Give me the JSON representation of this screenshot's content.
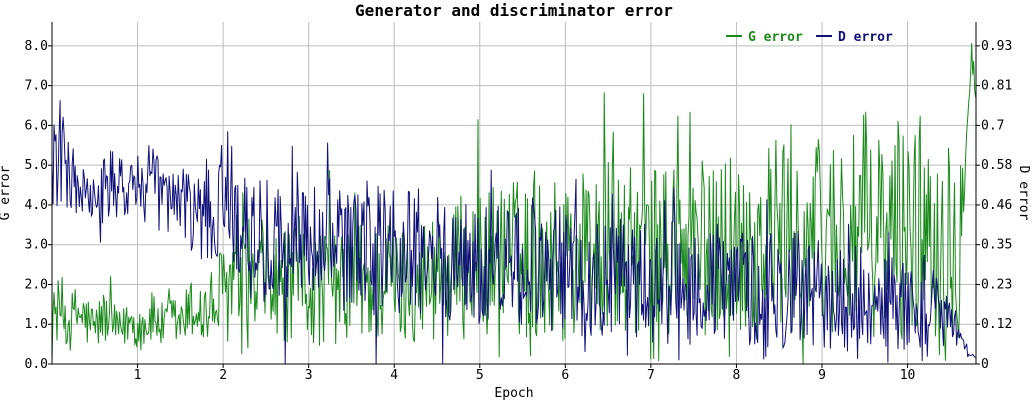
{
  "chart_data": {
    "type": "line",
    "title": "Generator and discriminator error",
    "xlabel": "Epoch",
    "ylabel_left": "G error",
    "ylabel_right": "D error",
    "xlim": [
      0,
      10.8
    ],
    "ylim_left": [
      0,
      8.6
    ],
    "ylim_right": [
      0,
      1.0
    ],
    "x_ticks": [
      1,
      2,
      3,
      4,
      5,
      6,
      7,
      8,
      9,
      10
    ],
    "x_tick_labels": [
      "1",
      "2",
      "3",
      "4",
      "5",
      "6",
      "7",
      "8",
      "9",
      "10"
    ],
    "y_left_ticks": [
      0,
      1,
      2,
      3,
      4,
      5,
      6,
      7,
      8
    ],
    "y_left_tick_labels": [
      "0.0",
      "1.0",
      "2.0",
      "3.0",
      "4.0",
      "5.0",
      "6.0",
      "7.0",
      "8.0"
    ],
    "y_right_ticks": [
      0,
      0.1163,
      0.2326,
      0.3488,
      0.4651,
      0.5814,
      0.6977,
      0.814,
      0.9302
    ],
    "y_right_tick_labels": [
      "0",
      "0.12",
      "0.23",
      "0.35",
      "0.46",
      "0.58",
      "0.7",
      "0.81",
      "0.93"
    ],
    "grid": true,
    "legend_position": "top-right",
    "series": [
      {
        "name": "G error",
        "axis": "left",
        "color": "#1a8a1a",
        "x": [
          0.0,
          0.1,
          0.2,
          0.3,
          0.4,
          0.5,
          0.6,
          0.7,
          0.8,
          0.9,
          1.0,
          1.1,
          1.2,
          1.3,
          1.4,
          1.5,
          1.6,
          1.7,
          1.8,
          1.9,
          2.0,
          2.1,
          2.2,
          2.3,
          2.4,
          2.5,
          2.6,
          2.7,
          2.8,
          2.9,
          3.0,
          3.1,
          3.2,
          3.3,
          3.4,
          3.5,
          3.6,
          3.7,
          3.8,
          3.9,
          4.0,
          4.1,
          4.2,
          4.3,
          4.4,
          4.5,
          4.6,
          4.7,
          4.8,
          4.9,
          5.0,
          5.1,
          5.2,
          5.3,
          5.4,
          5.5,
          5.6,
          5.7,
          5.8,
          5.9,
          6.0,
          6.1,
          6.2,
          6.3,
          6.4,
          6.5,
          6.6,
          6.7,
          6.8,
          6.9,
          7.0,
          7.1,
          7.2,
          7.3,
          7.4,
          7.5,
          7.6,
          7.7,
          7.8,
          7.9,
          8.0,
          8.1,
          8.2,
          8.3,
          8.4,
          8.5,
          8.6,
          8.7,
          8.8,
          8.9,
          9.0,
          9.1,
          9.2,
          9.3,
          9.4,
          9.5,
          9.6,
          9.7,
          9.8,
          9.9,
          10.0,
          10.1,
          10.2,
          10.3,
          10.4,
          10.5,
          10.6,
          10.7,
          10.75,
          10.8
        ],
        "values": [
          1.2,
          1.4,
          1.0,
          1.3,
          1.1,
          0.9,
          1.2,
          1.0,
          0.8,
          1.1,
          0.9,
          1.0,
          1.2,
          0.9,
          1.1,
          1.0,
          1.3,
          1.4,
          1.2,
          1.5,
          1.8,
          2.0,
          1.9,
          1.7,
          1.8,
          2.1,
          1.9,
          2.0,
          1.8,
          2.2,
          2.0,
          1.9,
          2.1,
          2.0,
          1.8,
          2.3,
          2.1,
          1.9,
          2.0,
          2.2,
          2.1,
          2.0,
          2.3,
          2.2,
          2.1,
          2.4,
          2.3,
          2.2,
          2.5,
          2.4,
          2.6,
          2.5,
          2.8,
          2.6,
          2.7,
          2.5,
          2.9,
          2.7,
          2.8,
          2.6,
          2.7,
          2.9,
          2.8,
          3.0,
          2.7,
          2.9,
          2.8,
          2.6,
          2.9,
          3.0,
          2.8,
          2.7,
          2.9,
          3.1,
          2.8,
          3.0,
          2.9,
          2.7,
          3.0,
          3.2,
          2.9,
          3.1,
          3.0,
          2.8,
          3.3,
          3.1,
          3.4,
          3.2,
          3.0,
          3.3,
          3.1,
          3.2,
          3.4,
          3.0,
          3.3,
          3.5,
          3.2,
          3.4,
          3.1,
          3.3,
          3.5,
          3.4,
          3.6,
          3.3,
          3.5,
          3.2,
          3.0,
          6.5,
          7.8,
          6.8
        ],
        "amplitude": [
          0.6,
          0.9,
          0.7,
          0.8,
          0.7,
          0.6,
          0.7,
          0.6,
          0.5,
          0.6,
          0.6,
          0.6,
          0.7,
          0.6,
          0.7,
          0.6,
          0.8,
          0.9,
          0.9,
          1.1,
          1.3,
          1.5,
          1.4,
          1.3,
          1.4,
          1.5,
          1.4,
          1.5,
          1.4,
          1.6,
          1.5,
          1.5,
          1.6,
          1.5,
          1.4,
          1.7,
          1.6,
          1.5,
          1.6,
          1.7,
          1.6,
          1.6,
          1.7,
          1.7,
          1.6,
          1.8,
          1.8,
          1.7,
          1.9,
          1.8,
          2.0,
          1.9,
          2.1,
          2.0,
          2.1,
          1.9,
          2.3,
          2.1,
          2.2,
          2.0,
          2.1,
          2.3,
          2.2,
          2.4,
          2.1,
          2.3,
          2.2,
          2.0,
          2.3,
          2.4,
          2.2,
          2.1,
          2.3,
          2.5,
          2.2,
          2.4,
          2.3,
          2.1,
          2.4,
          2.6,
          2.3,
          2.5,
          2.4,
          2.2,
          2.7,
          2.5,
          2.8,
          2.6,
          2.4,
          2.7,
          2.5,
          2.6,
          2.8,
          2.4,
          2.7,
          2.9,
          2.6,
          2.8,
          2.5,
          2.7,
          2.9,
          2.8,
          3.0,
          2.7,
          2.9,
          2.6,
          2.4,
          0.6,
          0.5,
          0.4
        ]
      },
      {
        "name": "D error",
        "axis": "right",
        "color": "#10107a",
        "x": [
          0.0,
          0.1,
          0.2,
          0.3,
          0.4,
          0.5,
          0.6,
          0.7,
          0.8,
          0.9,
          1.0,
          1.1,
          1.2,
          1.3,
          1.4,
          1.5,
          1.6,
          1.7,
          1.8,
          1.9,
          2.0,
          2.1,
          2.2,
          2.3,
          2.4,
          2.5,
          2.6,
          2.7,
          2.8,
          2.9,
          3.0,
          3.1,
          3.2,
          3.3,
          3.4,
          3.5,
          3.6,
          3.7,
          3.8,
          3.9,
          4.0,
          4.1,
          4.2,
          4.3,
          4.4,
          4.5,
          4.6,
          4.7,
          4.8,
          4.9,
          5.0,
          5.1,
          5.2,
          5.3,
          5.4,
          5.5,
          5.6,
          5.7,
          5.8,
          5.9,
          6.0,
          6.1,
          6.2,
          6.3,
          6.4,
          6.5,
          6.6,
          6.7,
          6.8,
          6.9,
          7.0,
          7.1,
          7.2,
          7.3,
          7.4,
          7.5,
          7.6,
          7.7,
          7.8,
          7.9,
          8.0,
          8.1,
          8.2,
          8.3,
          8.4,
          8.5,
          8.6,
          8.7,
          8.8,
          8.9,
          9.0,
          9.1,
          9.2,
          9.3,
          9.4,
          9.5,
          9.6,
          9.7,
          9.8,
          9.9,
          10.0,
          10.1,
          10.2,
          10.3,
          10.4,
          10.5,
          10.6,
          10.7,
          10.75,
          10.8
        ],
        "values": [
          0.58,
          0.62,
          0.55,
          0.52,
          0.48,
          0.46,
          0.5,
          0.52,
          0.5,
          0.54,
          0.52,
          0.5,
          0.54,
          0.5,
          0.46,
          0.48,
          0.45,
          0.42,
          0.46,
          0.44,
          0.48,
          0.52,
          0.4,
          0.36,
          0.38,
          0.35,
          0.37,
          0.34,
          0.36,
          0.38,
          0.35,
          0.33,
          0.36,
          0.34,
          0.32,
          0.35,
          0.33,
          0.31,
          0.34,
          0.32,
          0.33,
          0.3,
          0.34,
          0.32,
          0.3,
          0.31,
          0.29,
          0.32,
          0.3,
          0.28,
          0.3,
          0.29,
          0.31,
          0.28,
          0.3,
          0.27,
          0.29,
          0.28,
          0.26,
          0.29,
          0.27,
          0.28,
          0.26,
          0.27,
          0.25,
          0.27,
          0.26,
          0.24,
          0.26,
          0.25,
          0.24,
          0.23,
          0.25,
          0.24,
          0.22,
          0.24,
          0.23,
          0.22,
          0.24,
          0.22,
          0.21,
          0.23,
          0.22,
          0.2,
          0.22,
          0.21,
          0.2,
          0.22,
          0.2,
          0.19,
          0.21,
          0.2,
          0.19,
          0.18,
          0.2,
          0.19,
          0.18,
          0.17,
          0.19,
          0.18,
          0.17,
          0.16,
          0.18,
          0.16,
          0.15,
          0.12,
          0.08,
          0.04,
          0.02,
          0.02
        ],
        "amplitude": [
          0.12,
          0.16,
          0.1,
          0.1,
          0.09,
          0.08,
          0.1,
          0.11,
          0.1,
          0.1,
          0.1,
          0.09,
          0.1,
          0.09,
          0.09,
          0.1,
          0.12,
          0.14,
          0.15,
          0.16,
          0.18,
          0.2,
          0.18,
          0.17,
          0.18,
          0.19,
          0.18,
          0.19,
          0.18,
          0.2,
          0.19,
          0.19,
          0.2,
          0.19,
          0.18,
          0.2,
          0.19,
          0.18,
          0.2,
          0.19,
          0.19,
          0.18,
          0.2,
          0.19,
          0.18,
          0.19,
          0.18,
          0.19,
          0.18,
          0.18,
          0.19,
          0.18,
          0.2,
          0.18,
          0.19,
          0.18,
          0.19,
          0.18,
          0.18,
          0.19,
          0.18,
          0.19,
          0.18,
          0.19,
          0.18,
          0.19,
          0.18,
          0.17,
          0.19,
          0.18,
          0.18,
          0.17,
          0.19,
          0.18,
          0.17,
          0.19,
          0.18,
          0.17,
          0.19,
          0.17,
          0.17,
          0.18,
          0.17,
          0.16,
          0.18,
          0.17,
          0.16,
          0.18,
          0.16,
          0.15,
          0.17,
          0.16,
          0.15,
          0.14,
          0.16,
          0.15,
          0.14,
          0.13,
          0.15,
          0.14,
          0.13,
          0.12,
          0.14,
          0.12,
          0.1,
          0.06,
          0.03,
          0.02,
          0.01,
          0.01
        ]
      }
    ]
  }
}
